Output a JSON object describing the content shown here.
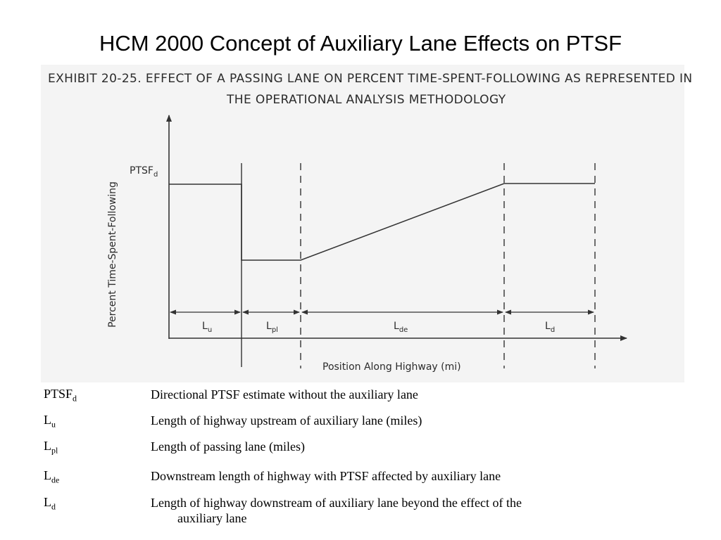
{
  "slide": {
    "title": "HCM 2000 Concept of Auxiliary Lane Effects on PTSF"
  },
  "exhibit": {
    "caption_line1": "EXHIBIT 20-25.  EFFECT OF A PASSING LANE ON PERCENT TIME-SPENT-FOLLOWING AS REPRESENTED IN",
    "caption_line2": "THE OPERATIONAL ANALYSIS METHODOLOGY",
    "y_axis_label": "Percent Time-Spent-Following",
    "x_axis_label": "Position Along Highway (mi)",
    "ptsf_label": {
      "main": "PTSF",
      "sub": "d"
    },
    "segments": [
      {
        "main": "L",
        "sub": "u"
      },
      {
        "main": "L",
        "sub": "pl"
      },
      {
        "main": "L",
        "sub": "de"
      },
      {
        "main": "L",
        "sub": "d"
      }
    ]
  },
  "legend": [
    {
      "sym": "PTSF",
      "sub": "d",
      "desc": "Directional PTSF estimate without the auxiliary lane",
      "desc_cont": ""
    },
    {
      "sym": "L",
      "sub": "u",
      "desc": "Length of highway upstream of auxiliary lane (miles)",
      "desc_cont": ""
    },
    {
      "sym": "L",
      "sub": "pl",
      "desc": "Length of passing lane (miles)",
      "desc_cont": ""
    },
    {
      "sym": "L",
      "sub": "de",
      "desc": "Downstream length of highway with PTSF affected by auxiliary lane",
      "desc_cont": ""
    },
    {
      "sym": "L",
      "sub": "d",
      "desc": "Length of highway downstream of auxiliary lane beyond the effect of the",
      "desc_cont": "auxiliary lane"
    }
  ]
}
